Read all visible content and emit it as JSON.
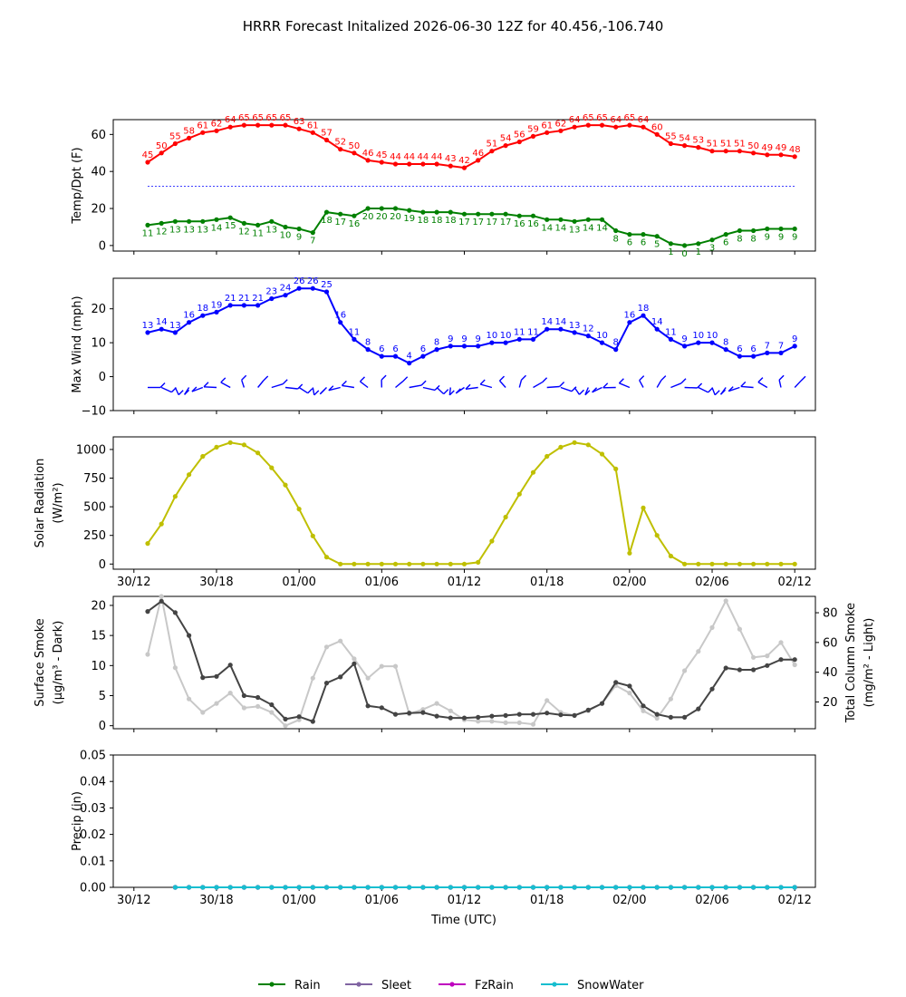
{
  "title": "HRRR Forecast Initalized 2026-06-30 12Z for 40.456,-106.740",
  "x_tick_labels": [
    "30/12",
    "30/18",
    "01/00",
    "01/06",
    "01/12",
    "01/18",
    "02/00",
    "02/06",
    "02/12"
  ],
  "x_label": "Time (UTC)",
  "colors": {
    "temp": "#ff0000",
    "dewpoint": "#008000",
    "wind": "#0000ff",
    "solar": "#bfbf00",
    "smoke_dark": "#444444",
    "smoke_light": "#c8c8c8",
    "rain": "#008000",
    "sleet": "#8064a2",
    "fzrain": "#bf00bf",
    "snow": "#17becf"
  },
  "legend": [
    "Rain",
    "Sleet",
    "FzRain",
    "SnowWater"
  ],
  "chart_data": [
    {
      "type": "line",
      "ylabel": "Temp/Dpt (F)",
      "ylim": [
        -3,
        68
      ],
      "yticks": [
        "0",
        "20",
        "40",
        "60"
      ],
      "x_hours_start": 1,
      "x_hours_end": 48,
      "series": [
        {
          "name": "Temp",
          "values": [
            45,
            50,
            55,
            58,
            61,
            62,
            64,
            65,
            65,
            65,
            65,
            63,
            61,
            57,
            52,
            50,
            46,
            45,
            44,
            44,
            44,
            44,
            43,
            42,
            46,
            51,
            54,
            56,
            59,
            61,
            62,
            64,
            65,
            65,
            64,
            65,
            64,
            60,
            55,
            54,
            53,
            51,
            51,
            51,
            50,
            49,
            49,
            48
          ]
        },
        {
          "name": "Dewpoint",
          "values": [
            11,
            12,
            13,
            13,
            13,
            14,
            15,
            12,
            11,
            13,
            10,
            9,
            7,
            18,
            17,
            16,
            20,
            20,
            20,
            19,
            18,
            18,
            18,
            17,
            17,
            17,
            17,
            16,
            16,
            14,
            14,
            13,
            14,
            14,
            8,
            6,
            6,
            5,
            1,
            0,
            1,
            3,
            6,
            8,
            8,
            9,
            9,
            9
          ]
        }
      ],
      "freezing_line": 32
    },
    {
      "type": "line",
      "ylabel": "Max Wind (mph)",
      "ylim": [
        -10,
        29
      ],
      "yticks": [
        "−10",
        "0",
        "10",
        "20"
      ],
      "x_hours_start": 1,
      "x_hours_end": 48,
      "series": [
        {
          "name": "Max Wind",
          "values": [
            13,
            14,
            13,
            16,
            18,
            19,
            21,
            21,
            21,
            23,
            24,
            26,
            26,
            25,
            16,
            11,
            8,
            6,
            6,
            4,
            6,
            8,
            9,
            9,
            9,
            10,
            10,
            11,
            11,
            14,
            14,
            13,
            12,
            10,
            8,
            16,
            18,
            14,
            11,
            9,
            10,
            10,
            8,
            6,
            6,
            7,
            7,
            9
          ]
        }
      ]
    },
    {
      "type": "line",
      "ylabel": "Solar Radiation",
      "ylabel2": "(W/m²)",
      "ylim": [
        -45,
        1110
      ],
      "yticks": [
        "0",
        "250",
        "500",
        "750",
        "1000"
      ],
      "x_hours_start": 1,
      "x_hours_end": 48,
      "series": [
        {
          "name": "Solar",
          "values": [
            180,
            350,
            590,
            780,
            940,
            1020,
            1060,
            1040,
            970,
            840,
            690,
            480,
            245,
            60,
            0,
            0,
            0,
            0,
            0,
            0,
            0,
            0,
            0,
            0,
            15,
            200,
            410,
            610,
            800,
            940,
            1020,
            1060,
            1040,
            960,
            830,
            95,
            490,
            250,
            70,
            0,
            0,
            0,
            0,
            0,
            0,
            0,
            0,
            0
          ]
        }
      ]
    },
    {
      "type": "line",
      "ylabel": "Surface Smoke",
      "ylabel2": "(μg/m³ - Dark)",
      "ylabel_right": "Total Column Smoke",
      "ylabel_right2": "(mg/m² - Light)",
      "ylim": [
        -0.5,
        21.5
      ],
      "yticks": [
        "0",
        "5",
        "10",
        "15",
        "20"
      ],
      "ylim_right": [
        2,
        91
      ],
      "yticks_right": [
        "20",
        "40",
        "60",
        "80"
      ],
      "x_hours_start": 1,
      "x_hours_end": 48,
      "series": [
        {
          "name": "Surface Smoke",
          "values": [
            19,
            20.7,
            18.8,
            15,
            8,
            8.2,
            10.1,
            5,
            4.7,
            3.5,
            1.1,
            1.5,
            0.7,
            7.1,
            8.1,
            10.3,
            3.3,
            3,
            1.9,
            2.1,
            2.2,
            1.6,
            1.3,
            1.3,
            1.4,
            1.6,
            1.7,
            1.9,
            1.9,
            2.1,
            1.8,
            1.7,
            2.6,
            3.7,
            7.2,
            6.6,
            3.3,
            1.9,
            1.4,
            1.4,
            2.8,
            6.1,
            9.6,
            9.3,
            9.3,
            10,
            11,
            11
          ]
        },
        {
          "name": "Total Column Smoke",
          "values": [
            52,
            91,
            43,
            22,
            13,
            19,
            26,
            16,
            17,
            13,
            4,
            8,
            36,
            57,
            61,
            49,
            36,
            44,
            44,
            12,
            15,
            19,
            14,
            8,
            7,
            7,
            6,
            6,
            5,
            21,
            13,
            11,
            14,
            19,
            31,
            26,
            14,
            9,
            22,
            41,
            54,
            70,
            88,
            69,
            50,
            51,
            60,
            45
          ]
        }
      ]
    },
    {
      "type": "line",
      "ylabel": "Precip (in)",
      "ylim": [
        0,
        0.05
      ],
      "yticks": [
        "0.00",
        "0.01",
        "0.02",
        "0.03",
        "0.04",
        "0.05"
      ],
      "x_hours_start": 3,
      "x_hours_end": 48,
      "series": [
        {
          "name": "Rain",
          "value": 0
        },
        {
          "name": "Sleet",
          "value": 0
        },
        {
          "name": "FzRain",
          "value": 0
        },
        {
          "name": "SnowWater",
          "value": 0
        }
      ]
    }
  ]
}
